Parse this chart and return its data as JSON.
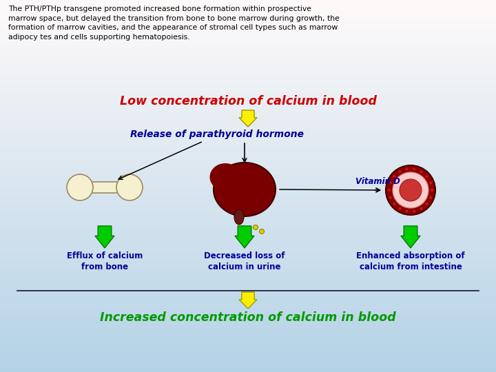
{
  "bg_colors": [
    "#c8dff0",
    "#ddeeff",
    "#eef5ff",
    "#f5faff"
  ],
  "top_label": "Low concentration of calcium in blood",
  "top_label_color": "#cc0000",
  "release_label": "Release of parathyroid hormone",
  "release_label_color": "#000099",
  "vitamin_d_label": "Vitamin D",
  "vitamin_d_color": "#000099",
  "bottom_label": "Increased concentration of calcium in blood",
  "bottom_label_color": "#009900",
  "label1": "Efflux of calcium\nfrom bone",
  "label2": "Decreased loss of\ncalcium in urine",
  "label3": "Enhanced absorption of\ncalcium from intestine",
  "labels_color": "#000099",
  "paragraph": "The PTH/PTHp transgene promoted increased bone formation within prospective\nmarrow space, but delayed the transition from bone to bone marrow during growth, the\nformation of marrow cavities, and the appearance of stromal cell types such as marrow\nadipocy tes and cells supporting hematopoiesis.",
  "figsize": [
    7.2,
    5.4
  ],
  "dpi": 100
}
